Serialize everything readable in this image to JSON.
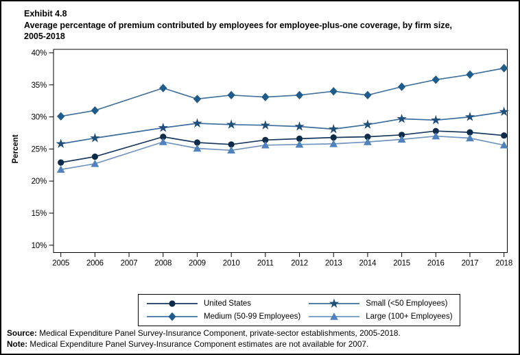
{
  "header": {
    "exhibit_label": "Exhibit 4.8",
    "title_lines": [
      "Average percentage of premium contributed by employees for employee-plus-one coverage, by firm size,",
      "2005-2018"
    ]
  },
  "chart_data": {
    "type": "line",
    "title": "Exhibit 4.8 Average percentage of premium contributed by employees for employee-plus-one coverage, by firm size, 2005-2018",
    "xlabel": "",
    "ylabel": "Percent",
    "ylim": [
      10,
      40
    ],
    "ytick_step": 5,
    "ytick_suffix": "%",
    "grid": false,
    "legend_position": "bottom",
    "categories": [
      2005,
      2006,
      2007,
      2008,
      2009,
      2010,
      2011,
      2012,
      2013,
      2014,
      2015,
      2016,
      2017,
      2018
    ],
    "missing_data_year": 2007,
    "series": [
      {
        "name": "United States",
        "marker": "circle",
        "marker_color": "#0f2b4a",
        "line_color": "#17375e",
        "values": [
          22.9,
          23.8,
          null,
          26.9,
          26.0,
          25.7,
          26.4,
          26.6,
          26.8,
          26.9,
          27.2,
          27.8,
          27.6,
          27.1
        ]
      },
      {
        "name": "Small (<50 Employees)",
        "marker": "star",
        "marker_color": "#1f4e79",
        "line_color": "#3a6d9e",
        "values": [
          25.8,
          26.7,
          null,
          28.3,
          29.0,
          28.8,
          28.7,
          28.5,
          28.1,
          28.8,
          29.7,
          29.5,
          30.0,
          30.8
        ]
      },
      {
        "name": "Medium (50-99 Employees)",
        "marker": "diamond",
        "marker_color": "#1f5c8b",
        "line_color": "#41719c",
        "values": [
          30.1,
          31.0,
          null,
          34.5,
          32.8,
          33.4,
          33.1,
          33.4,
          34.0,
          33.4,
          34.7,
          35.8,
          36.6,
          37.6
        ]
      },
      {
        "name": "Large (100+ Employees)",
        "marker": "triangle",
        "marker_color": "#4f81bd",
        "line_color": "#7094bf",
        "values": [
          21.8,
          22.7,
          null,
          26.1,
          25.1,
          24.8,
          25.6,
          25.7,
          25.8,
          26.1,
          26.5,
          27.0,
          26.7,
          25.6
        ]
      }
    ]
  },
  "footer": {
    "source_label": "Source:",
    "source_text": " Medical Expenditure Panel Survey-Insurance Component, private-sector establishments, 2005-2018.",
    "note_label": "Note:",
    "note_text": " Medical Expenditure Panel Survey-Insurance Component estimates are not available for 2007."
  }
}
